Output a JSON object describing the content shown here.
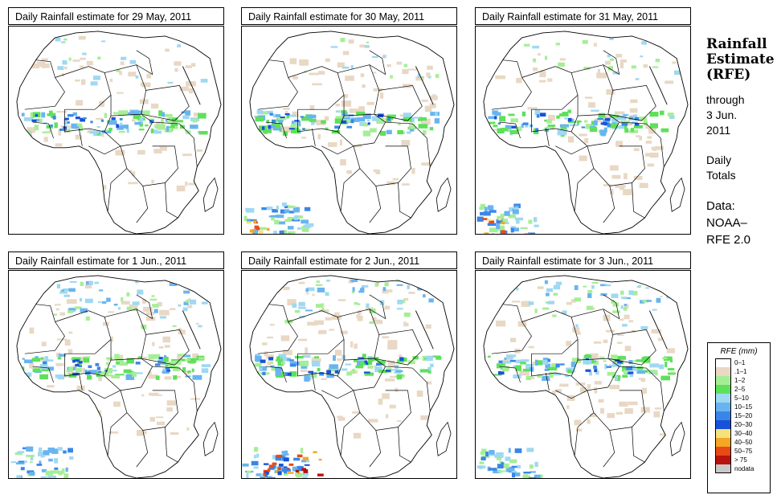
{
  "panels": [
    {
      "title": "Daily Rainfall estimate for  29 May, 2011",
      "variant": 0
    },
    {
      "title": "Daily Rainfall estimate for  30 May, 2011",
      "variant": 1
    },
    {
      "title": "Daily Rainfall estimate for  31 May, 2011",
      "variant": 2
    },
    {
      "title": "Daily Rainfall estimate for  1 Jun., 2011",
      "variant": 3
    },
    {
      "title": "Daily Rainfall estimate for  2 Jun., 2011",
      "variant": 4
    },
    {
      "title": "Daily Rainfall estimate for  3 Jun., 2011",
      "variant": 5
    }
  ],
  "side": {
    "title_line1": "Rainfall",
    "title_line2": "Estimate",
    "title_line3": "(RFE)",
    "through": "through",
    "date_line1": "3 Jun.",
    "date_line2": "2011",
    "period_line1": "Daily",
    "period_line2": "Totals",
    "data_label": "Data:",
    "source_line1": "NOAA–",
    "source_line2": "RFE 2.0"
  },
  "legend": {
    "title": "RFE (mm)",
    "items": [
      {
        "label": "0–1",
        "color": "#ffffff"
      },
      {
        "label": ".1–1",
        "color": "#e8d8c4"
      },
      {
        "label": "1–2",
        "color": "#a6ee96"
      },
      {
        "label": "2–5",
        "color": "#5ee05a"
      },
      {
        "label": "5–10",
        "color": "#9fd8f2"
      },
      {
        "label": "10–15",
        "color": "#69b4f0"
      },
      {
        "label": "15–20",
        "color": "#3a86e8"
      },
      {
        "label": "20–30",
        "color": "#1752d8"
      },
      {
        "label": "30–40",
        "color": "#f5e27a"
      },
      {
        "label": "40–50",
        "color": "#f5a623"
      },
      {
        "label": "50–75",
        "color": "#e84a14"
      },
      {
        "label": "> 75",
        "color": "#b8110e"
      },
      {
        "label": "nodata",
        "color": "#c8c8c8"
      }
    ]
  }
}
